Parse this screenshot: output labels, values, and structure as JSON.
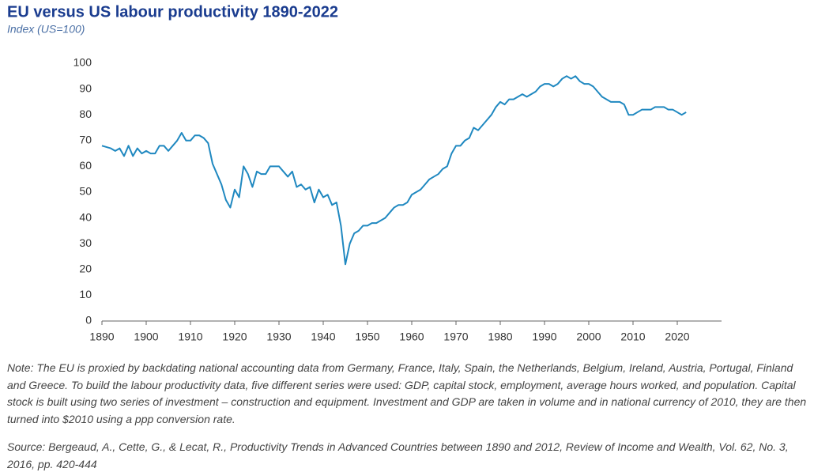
{
  "chart_data": {
    "type": "line",
    "title": "EU versus US labour productivity 1890-2022",
    "subtitle": "Index (US=100)",
    "note": "Note: The EU is proxied by backdating national accounting data from Germany, France, Italy, Spain, the Netherlands, Belgium, Ireland, Austria, Portugal, Finland and Greece. To build the labour productivity data, five different series were used: GDP, capital stock, employment, average hours worked, and population. Capital stock is built using two series of investment – construction and equipment. Investment and GDP are taken in volume and in national currency of 2010, they are then turned into $2010 using a ppp conversion rate.",
    "source": "Source: Bergeaud, A., Cette, G., & Lecat, R., Productivity Trends in Advanced Countries between 1890 and 2012, Review of Income and Wealth, Vol. 62, No. 3, 2016, pp. 420-444",
    "x": [
      1890,
      1891,
      1892,
      1893,
      1894,
      1895,
      1896,
      1897,
      1898,
      1899,
      1900,
      1901,
      1902,
      1903,
      1904,
      1905,
      1906,
      1907,
      1908,
      1909,
      1910,
      1911,
      1912,
      1913,
      1914,
      1915,
      1916,
      1917,
      1918,
      1919,
      1920,
      1921,
      1922,
      1923,
      1924,
      1925,
      1926,
      1927,
      1928,
      1929,
      1930,
      1931,
      1932,
      1933,
      1934,
      1935,
      1936,
      1937,
      1938,
      1939,
      1940,
      1941,
      1942,
      1943,
      1944,
      1945,
      1946,
      1947,
      1948,
      1949,
      1950,
      1951,
      1952,
      1953,
      1954,
      1955,
      1956,
      1957,
      1958,
      1959,
      1960,
      1961,
      1962,
      1963,
      1964,
      1965,
      1966,
      1967,
      1968,
      1969,
      1970,
      1971,
      1972,
      1973,
      1974,
      1975,
      1976,
      1977,
      1978,
      1979,
      1980,
      1981,
      1982,
      1983,
      1984,
      1985,
      1986,
      1987,
      1988,
      1989,
      1990,
      1991,
      1992,
      1993,
      1994,
      1995,
      1996,
      1997,
      1998,
      1999,
      2000,
      2001,
      2002,
      2003,
      2004,
      2005,
      2006,
      2007,
      2008,
      2009,
      2010,
      2011,
      2012,
      2013,
      2014,
      2015,
      2016,
      2017,
      2018,
      2019,
      2020,
      2021,
      2022
    ],
    "series": [
      {
        "name": "EU",
        "color": "#1f88c0",
        "values": [
          68,
          67.5,
          67,
          66,
          67,
          64,
          68,
          64,
          67,
          65,
          66,
          65,
          65,
          68,
          68,
          66,
          68,
          70,
          73,
          70,
          70,
          72,
          72,
          71,
          69,
          61,
          57,
          53,
          47,
          44,
          51,
          48,
          60,
          57,
          52,
          58,
          57,
          57,
          60,
          60,
          60,
          58,
          56,
          58,
          52,
          53,
          51,
          52,
          46,
          51,
          48,
          49,
          45,
          46,
          37,
          22,
          30,
          34,
          35,
          37,
          37,
          38,
          38,
          39,
          40,
          42,
          44,
          45,
          45,
          46,
          49,
          50,
          51,
          53,
          55,
          56,
          57,
          59,
          60,
          65,
          68,
          68,
          70,
          71,
          75,
          74,
          76,
          78,
          80,
          83,
          85,
          84,
          86,
          86,
          87,
          88,
          87,
          88,
          89,
          91,
          92,
          92,
          91,
          92,
          94,
          95,
          94,
          95,
          93,
          92,
          92,
          91,
          89,
          87,
          86,
          85,
          85,
          85,
          84,
          80,
          80,
          81,
          82,
          82,
          82,
          83,
          83,
          83,
          82,
          82,
          81,
          80,
          81
        ]
      }
    ],
    "xlim": [
      1890,
      2030
    ],
    "xticks": [
      1890,
      1900,
      1910,
      1920,
      1930,
      1940,
      1950,
      1960,
      1970,
      1980,
      1990,
      2000,
      2010,
      2020
    ],
    "ylim": [
      0,
      100
    ],
    "yticks": [
      0,
      10,
      20,
      30,
      40,
      50,
      60,
      70,
      80,
      90,
      100
    ],
    "grid": false
  }
}
